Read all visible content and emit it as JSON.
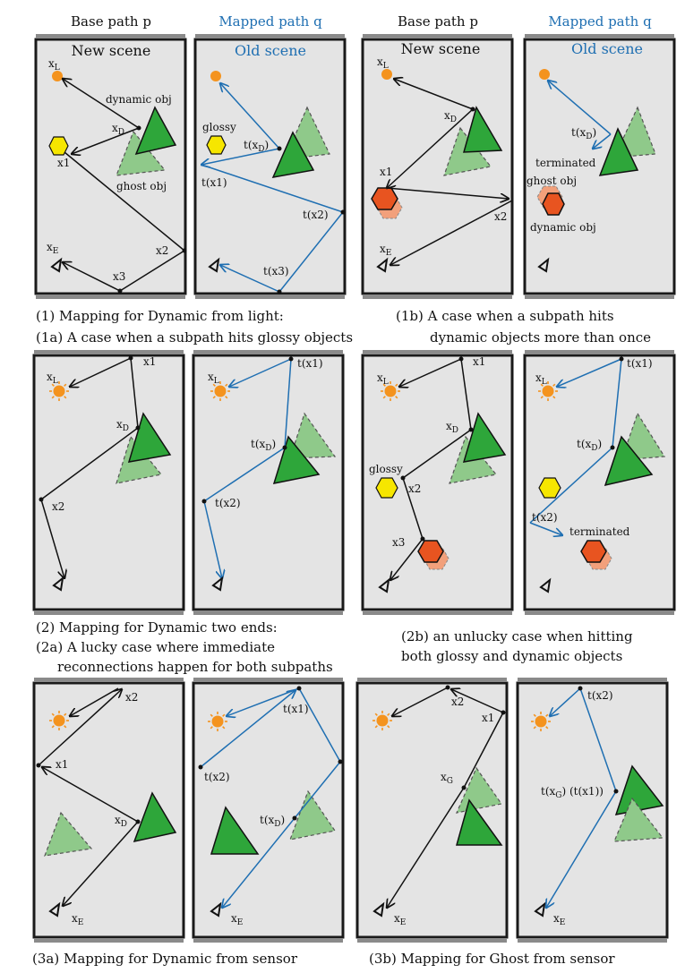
{
  "headers": {
    "base_path": "Base path p",
    "mapped_path": "Mapped path q",
    "new_scene": "New scene",
    "old_scene": "Old scene"
  },
  "labels": {
    "xL": "x",
    "xD": "x",
    "x1": "x1",
    "x2": "x2",
    "x3": "x3",
    "xE": "x",
    "xG": "x",
    "sub_L": "L",
    "sub_D": "D",
    "sub_E": "E",
    "sub_G": "G",
    "dynamic_obj": "dynamic obj",
    "ghost_obj": "ghost obj",
    "glossy": "glossy",
    "terminated": "terminated",
    "t_x1": "t(x1)",
    "t_x2": "t(x2)",
    "t_x3": "t(x3)",
    "t_xD_prefix": "t(x",
    "t_xG_combo_a": "t(x",
    "t_xG_combo_b": ") (t(x1))"
  },
  "captions": {
    "c1": "(1) Mapping for Dynamic from light:",
    "c1a": "(1a) A case when a subpath hits glossy objects",
    "c1b_1": "(1b) A case when a subpath hits",
    "c1b_2": "dynamic objects more than once",
    "c2": "(2) Mapping for Dynamic two ends:",
    "c2a_1": "(2a) A lucky case where immediate",
    "c2a_2": "reconnections happen for both subpaths",
    "c2b_1": "(2b) an unlucky case when hitting",
    "c2b_2": "both glossy and dynamic objects",
    "c3a": "(3a) Mapping for Dynamic from sensor",
    "c3b": "(3b) Mapping for Ghost from sensor"
  },
  "colors": {
    "panel_bg": "#e4e4e4",
    "frame": "#1a1a1a",
    "path_black": "#111111",
    "path_blue": "#1f6fb2",
    "dynamic_green": "#2ea63a",
    "ghost_green": "#8fc98a",
    "glossy_yellow": "#f6e600",
    "dynamic_red": "#e85420",
    "light_orange": "#f4931e"
  }
}
